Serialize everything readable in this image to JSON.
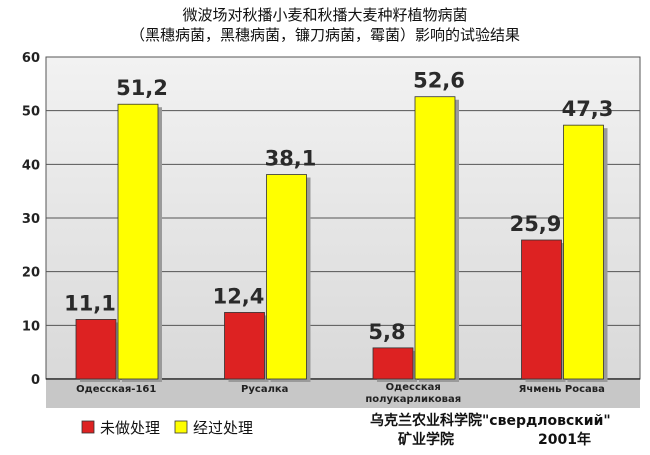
{
  "chart_data": {
    "type": "bar",
    "title": [
      "微波场对秋播小麦和秋播大麦种籽植物病菌",
      "（黑穗病菌，黑穗病菌，镰刀病菌，霉菌）影响的试验结果"
    ],
    "categories": [
      [
        "Одесская-161"
      ],
      [
        "Русалка"
      ],
      [
        "Одесская",
        "полукарликовая"
      ],
      [
        "Ячмень Росава"
      ]
    ],
    "series": [
      {
        "name": "未做处理",
        "color": "#dd2222",
        "values": [
          11.1,
          12.4,
          5.8,
          25.9
        ],
        "labels": [
          "11,1",
          "12,4",
          "5,8",
          "25,9"
        ]
      },
      {
        "name": "经过处理",
        "color": "#ffff00",
        "values": [
          51.2,
          38.1,
          52.6,
          47.3
        ],
        "labels": [
          "51,2",
          "38,1",
          "52,6",
          "47,3"
        ]
      }
    ],
    "yticks": [
      0,
      10,
      20,
      30,
      40,
      50,
      60
    ],
    "ylim": [
      0,
      60
    ],
    "grid": true,
    "legend_position": "bottom-left"
  },
  "footer": {
    "line1": "乌克兰农业科学院\"свердловский\"",
    "line2a": "矿业学院",
    "line2b": "2001年"
  }
}
